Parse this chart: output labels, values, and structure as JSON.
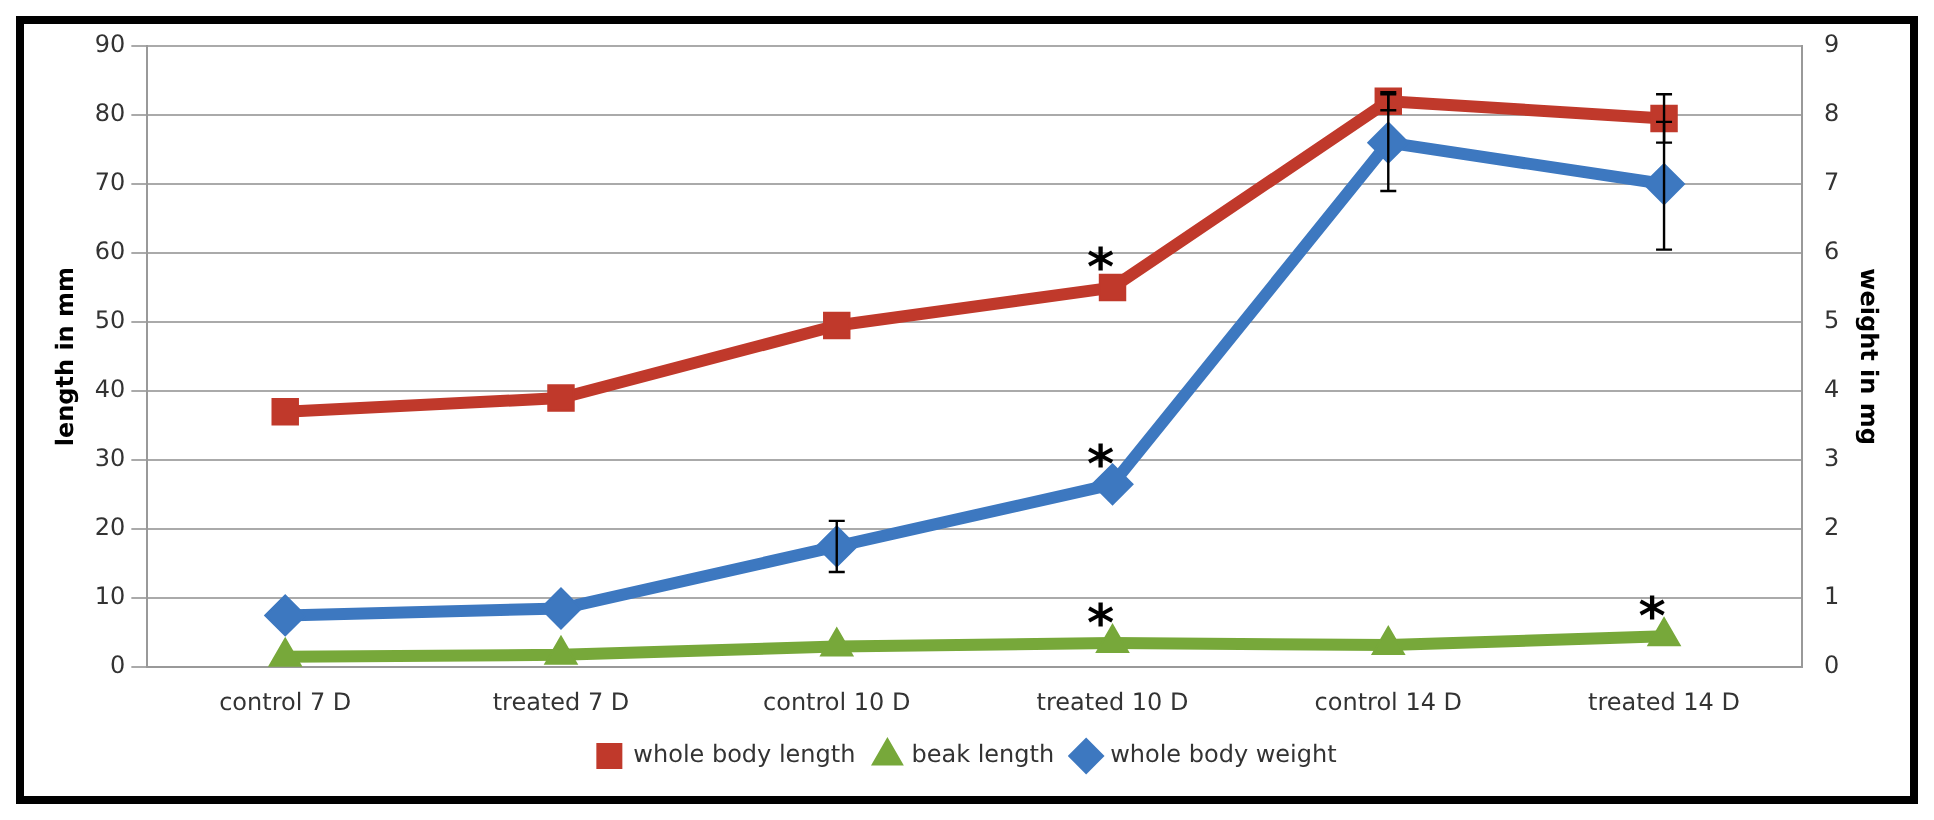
{
  "chart_data": {
    "type": "line",
    "categories": [
      "control 7 D",
      "treated 7 D",
      "control 10 D",
      "treated 10 D",
      "control 14 D",
      "treated 14 D"
    ],
    "ylabel": "length in mm",
    "y2label": "weight in mg",
    "ylim": [
      0,
      90
    ],
    "yticks": [
      0,
      10,
      20,
      30,
      40,
      50,
      60,
      70,
      80,
      90
    ],
    "y2lim": [
      0,
      9
    ],
    "y2ticks": [
      0,
      1,
      2,
      3,
      4,
      5,
      6,
      7,
      8,
      9
    ],
    "grid": "y",
    "legend": "bottom",
    "series": [
      {
        "name": "whole body length",
        "color": "#c0392b",
        "marker": "square",
        "values": [
          37,
          39,
          49.5,
          55,
          82,
          79.5
        ],
        "errors": [
          null,
          null,
          null,
          null,
          1.3,
          [
            76,
            83
          ]
        ]
      },
      {
        "name": "beak length",
        "color": "#77a83a",
        "marker": "triangle",
        "values": [
          1.5,
          1.8,
          3,
          3.5,
          3.2,
          4.5
        ]
      },
      {
        "name": "whole body weight",
        "color": "#3d78c0",
        "marker": "diamond",
        "axis": "y2",
        "values": [
          0.75,
          0.85,
          1.75,
          2.65,
          7.6,
          7.0
        ],
        "errors": [
          null,
          null,
          0.37,
          null,
          0.7,
          [
            6.05,
            7.9
          ]
        ]
      }
    ],
    "annotations": [
      {
        "text": "*",
        "x": "treated 10 D",
        "y": 55
      },
      {
        "text": "*",
        "x": "treated 10 D",
        "y": 2.65
      },
      {
        "text": "*",
        "x": "treated 10 D",
        "y": 3.5
      },
      {
        "text": "*",
        "x": "treated 14 D",
        "y": 4.5
      }
    ]
  }
}
